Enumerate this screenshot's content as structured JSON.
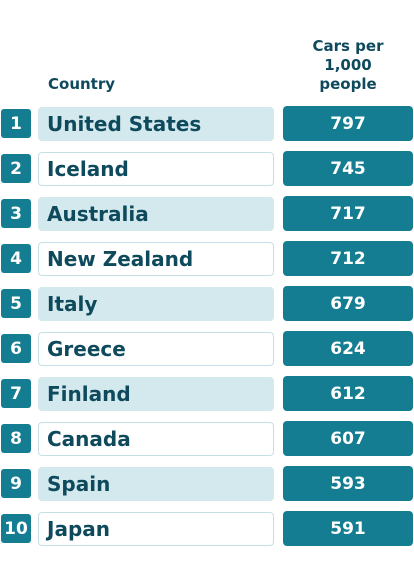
{
  "chart_data": {
    "type": "table",
    "columns": [
      "Country",
      "Cars per 1,000 people"
    ],
    "header_value_lines": [
      "Cars per",
      "1,000",
      "people"
    ],
    "rows": [
      {
        "rank": "1",
        "country": "United States",
        "value": "797"
      },
      {
        "rank": "2",
        "country": "Iceland",
        "value": "745"
      },
      {
        "rank": "3",
        "country": "Australia",
        "value": "717"
      },
      {
        "rank": "4",
        "country": "New Zealand",
        "value": "712"
      },
      {
        "rank": "5",
        "country": "Italy",
        "value": "679"
      },
      {
        "rank": "6",
        "country": "Greece",
        "value": "624"
      },
      {
        "rank": "7",
        "country": "Finland",
        "value": "612"
      },
      {
        "rank": "8",
        "country": "Canada",
        "value": "607"
      },
      {
        "rank": "9",
        "country": "Spain",
        "value": "593"
      },
      {
        "rank": "10",
        "country": "Japan",
        "value": "591"
      }
    ],
    "colors": {
      "accent": "#147d91",
      "shade": "#d3e9ee",
      "text": "#0e4a5c"
    }
  }
}
